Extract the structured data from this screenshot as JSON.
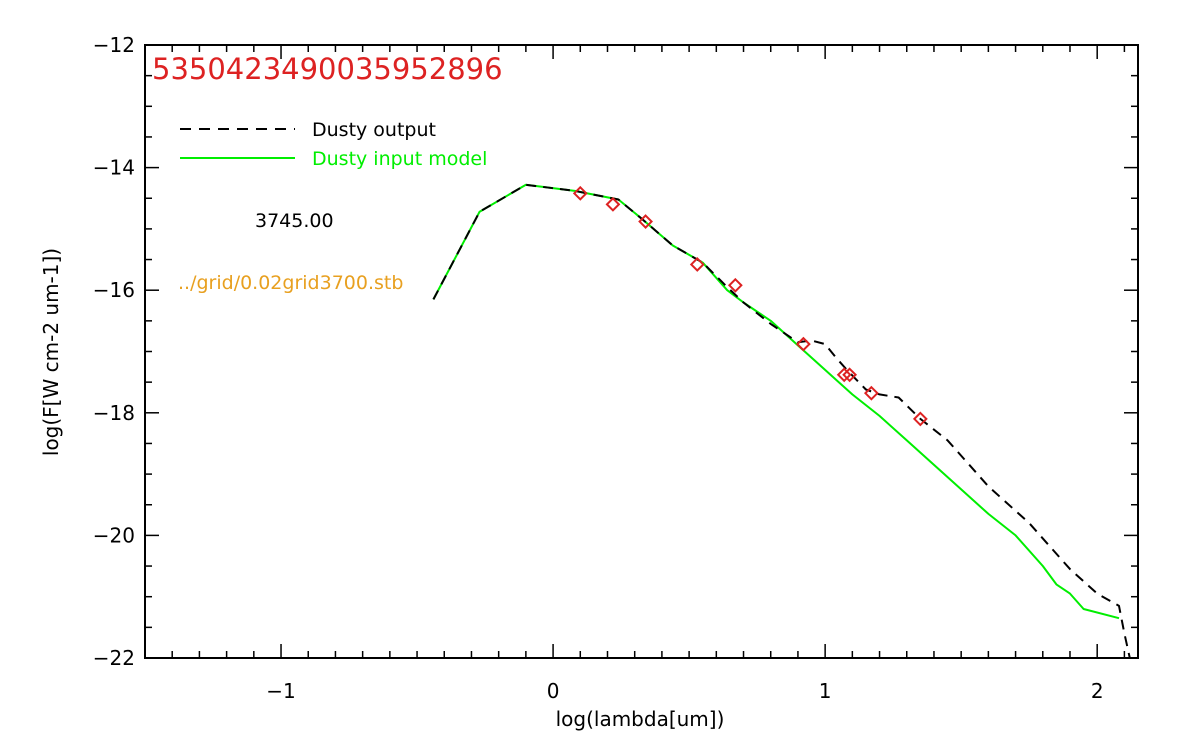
{
  "chart_data": {
    "type": "line",
    "title": "5350423490035952896",
    "xlabel": "log(lambda[um])",
    "ylabel": "log(F[W cm-2 um-1])",
    "xlim": [
      -1.5,
      2.15
    ],
    "ylim": [
      -22,
      -12
    ],
    "x_ticks": [
      -1,
      0,
      1,
      2
    ],
    "x_tick_labels": [
      "−1",
      "0",
      "1",
      "2"
    ],
    "y_ticks": [
      -12,
      -14,
      -16,
      -18,
      -20,
      -22
    ],
    "y_tick_labels": [
      "−12",
      "−14",
      "−16",
      "−18",
      "−20",
      "−22"
    ],
    "annotations": {
      "temperature": "3745.00",
      "model_file": "../grid/0.02grid3700.stb"
    },
    "legend_placement": "top-left",
    "series": [
      {
        "name": "Dusty output",
        "style": "dashed",
        "color": "#000000",
        "x": [
          -0.44,
          -0.27,
          -0.1,
          0.08,
          0.24,
          0.33,
          0.44,
          0.55,
          0.64,
          0.7,
          0.8,
          0.9,
          0.95,
          1.0,
          1.04,
          1.08,
          1.15,
          1.2,
          1.27,
          1.35,
          1.45,
          1.6,
          1.75,
          1.9,
          2.0,
          2.08,
          2.1,
          2.12
        ],
        "y": [
          -16.15,
          -14.72,
          -14.28,
          -14.38,
          -14.52,
          -14.85,
          -15.27,
          -15.55,
          -15.95,
          -16.2,
          -16.55,
          -16.85,
          -16.82,
          -16.88,
          -17.1,
          -17.3,
          -17.62,
          -17.7,
          -17.75,
          -18.1,
          -18.45,
          -19.2,
          -19.8,
          -20.55,
          -20.95,
          -21.15,
          -21.6,
          -22.0
        ]
      },
      {
        "name": "Dusty input model",
        "style": "solid",
        "color": "#00ee00",
        "x": [
          -0.44,
          -0.27,
          -0.1,
          0.08,
          0.24,
          0.33,
          0.44,
          0.55,
          0.64,
          0.7,
          0.8,
          0.9,
          1.0,
          1.1,
          1.2,
          1.3,
          1.4,
          1.5,
          1.6,
          1.7,
          1.8,
          1.85,
          1.9,
          1.95,
          2.08
        ],
        "y": [
          -16.15,
          -14.72,
          -14.28,
          -14.38,
          -14.52,
          -14.85,
          -15.27,
          -15.55,
          -16.0,
          -16.2,
          -16.5,
          -16.9,
          -17.3,
          -17.7,
          -18.05,
          -18.45,
          -18.85,
          -19.25,
          -19.65,
          -20.0,
          -20.5,
          -20.8,
          -20.95,
          -21.2,
          -21.35
        ]
      },
      {
        "name": "",
        "style": "markers",
        "marker": "diamond",
        "color": "#dd2222",
        "x": [
          0.1,
          0.22,
          0.34,
          0.53,
          0.67,
          0.92,
          1.07,
          1.09,
          1.17,
          1.35
        ],
        "y": [
          -14.42,
          -14.6,
          -14.88,
          -15.58,
          -15.92,
          -16.88,
          -17.38,
          -17.38,
          -17.68,
          -18.1
        ]
      }
    ]
  }
}
